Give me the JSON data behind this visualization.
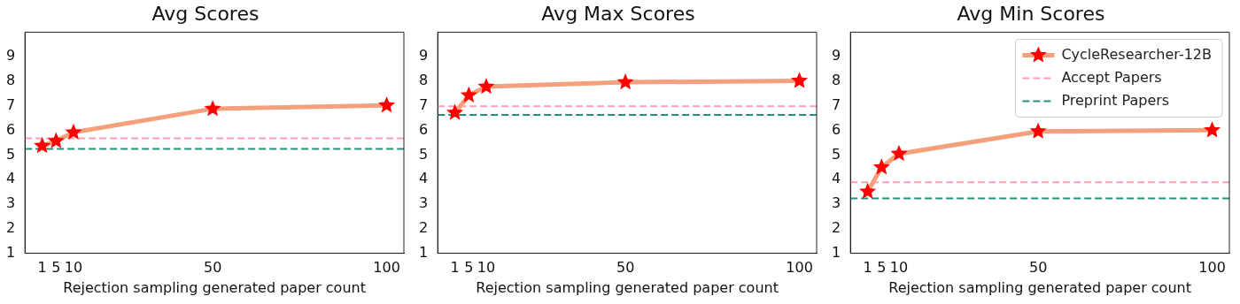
{
  "chart_data": [
    {
      "type": "line",
      "title": "Avg Scores",
      "xlabel": "Rejection sampling generated paper count",
      "x": [
        1,
        5,
        10,
        50,
        100
      ],
      "series": [
        {
          "color": "#f4a07c",
          "colors": [
            "#ff0000",
            "#ff0000",
            "#ff0000",
            "#ff0000",
            "#ff0000"
          ],
          "values": [
            5.37,
            5.57,
            5.92,
            6.88,
            7.02
          ]
        }
      ],
      "ref_lines": [
        {
          "axis": "y",
          "value": 5.68,
          "color": "#ff9eb5",
          "line_style": "dashed"
        },
        {
          "axis": "y",
          "value": 5.25,
          "color": "#21927f",
          "line_style": "dashed"
        }
      ],
      "xlim": [
        -3.95,
        104.95
      ],
      "xticks": [
        1,
        5,
        10,
        50,
        100
      ],
      "ylim": [
        1,
        10
      ],
      "yticks": [
        1,
        2,
        3,
        4,
        5,
        6,
        7,
        8,
        9
      ],
      "marker": "star",
      "line_style": "solid",
      "grid": false,
      "legend": false
    },
    {
      "type": "line",
      "title": "Avg Max Scores",
      "xlabel": "Rejection sampling generated paper count",
      "x": [
        1,
        5,
        10,
        50,
        100
      ],
      "series": [
        {
          "color": "#f4a07c",
          "colors": [
            "#ff0000",
            "#ff0000",
            "#ff0000",
            "#ff0000",
            "#ff0000"
          ],
          "values": [
            6.72,
            7.43,
            7.78,
            7.96,
            8.02
          ]
        }
      ],
      "ref_lines": [
        {
          "axis": "y",
          "value": 6.98,
          "color": "#ff9eb5",
          "line_style": "dashed"
        },
        {
          "axis": "y",
          "value": 6.63,
          "color": "#21927f",
          "line_style": "dashed"
        }
      ],
      "xlim": [
        -3.95,
        104.95
      ],
      "xticks": [
        1,
        5,
        10,
        50,
        100
      ],
      "ylim": [
        1,
        10
      ],
      "yticks": [
        1,
        2,
        3,
        4,
        5,
        6,
        7,
        8,
        9
      ],
      "marker": "star",
      "line_style": "solid",
      "grid": false,
      "legend": false
    },
    {
      "type": "line",
      "title": "Avg Min Scores",
      "xlabel": "Rejection sampling generated paper count",
      "x": [
        1,
        5,
        10,
        50,
        100
      ],
      "series": [
        {
          "name": "CycleResearcher-12B",
          "color": "#f4a07c",
          "colors": [
            "#ff0000",
            "#ff0000",
            "#ff0000",
            "#ff0000",
            "#ff0000"
          ],
          "values": [
            3.51,
            4.5,
            5.05,
            5.96,
            6.01
          ]
        }
      ],
      "ref_lines": [
        {
          "axis": "y",
          "value": 3.89,
          "label": "Accept Papers",
          "color": "#ff9eb5",
          "line_style": "dashed"
        },
        {
          "axis": "y",
          "value": 3.23,
          "label": "Preprint Papers",
          "color": "#21927f",
          "line_style": "dashed"
        }
      ],
      "xlim": [
        -3.95,
        104.95
      ],
      "xticks": [
        1,
        5,
        10,
        50,
        100
      ],
      "ylim": [
        1,
        10
      ],
      "yticks": [
        1,
        2,
        3,
        4,
        5,
        6,
        7,
        8,
        9
      ],
      "marker": "star",
      "line_style": "solid",
      "grid": false,
      "legend": "top right"
    }
  ]
}
